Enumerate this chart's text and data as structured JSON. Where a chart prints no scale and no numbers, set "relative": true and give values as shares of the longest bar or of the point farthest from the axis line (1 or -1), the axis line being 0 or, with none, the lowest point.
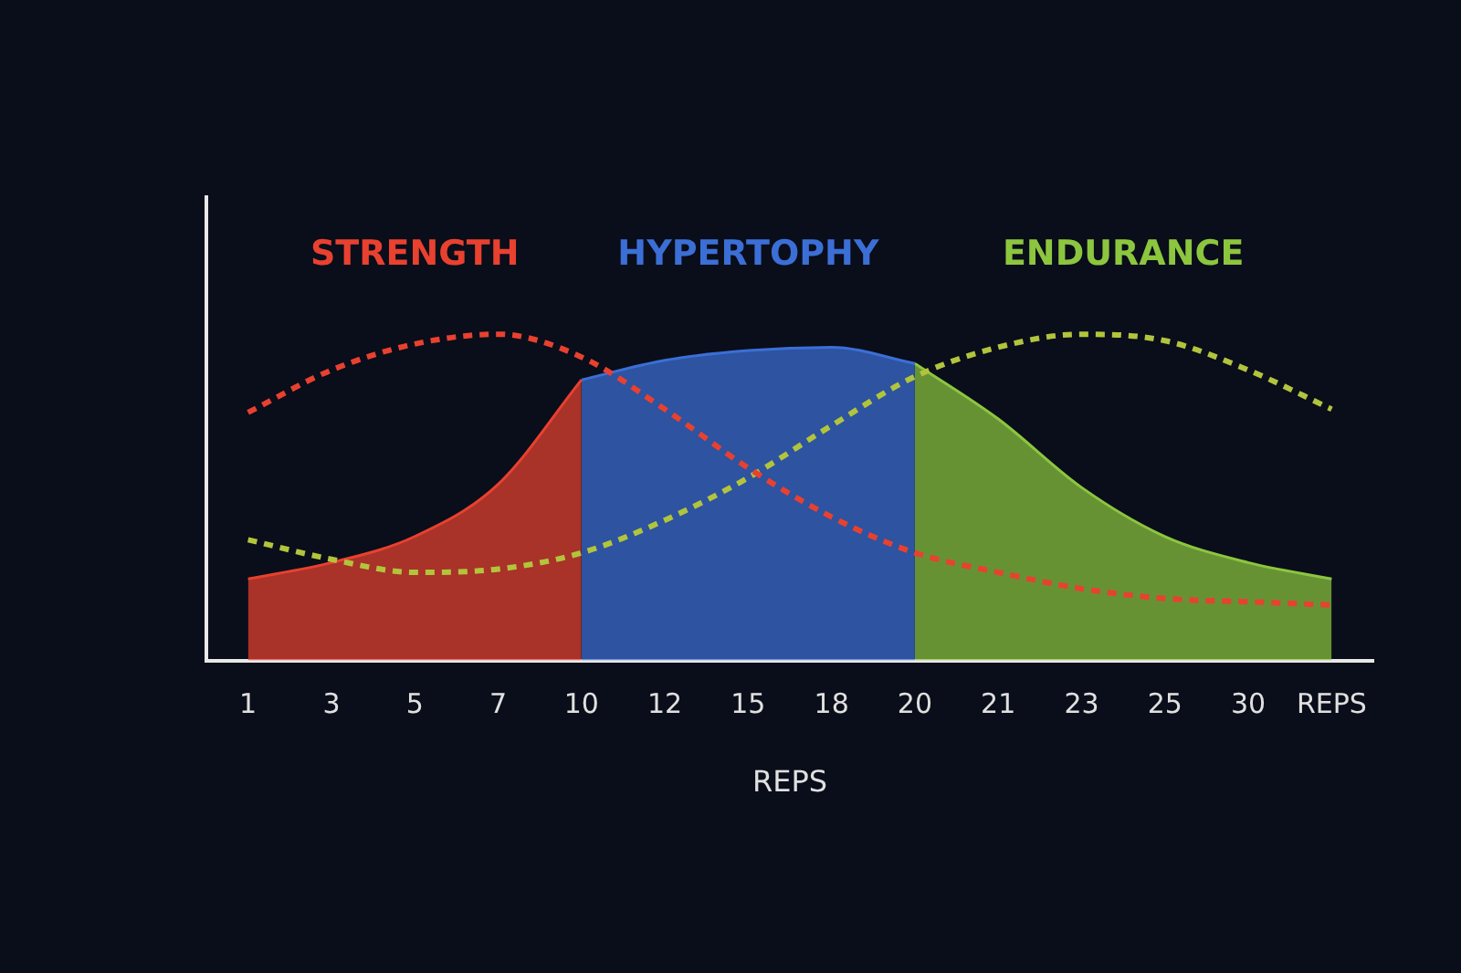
{
  "chart_data": {
    "type": "area",
    "relative": true,
    "xlabel": "REPS",
    "categories": [
      "1",
      "3",
      "5",
      "7",
      "10",
      "12",
      "15",
      "18",
      "20",
      "21",
      "23",
      "25",
      "30",
      "REPS"
    ],
    "grid": false,
    "legend": false,
    "marker": "none",
    "series": [
      {
        "name": "STRENGTH",
        "color": "#e8412f",
        "values": [
          0.25,
          0.3,
          0.38,
          0.54,
          0.86,
          null,
          null,
          null,
          null,
          null,
          null,
          null,
          null,
          null
        ]
      },
      {
        "name": "HYPERTOPHY",
        "color": "#3b6fd6",
        "values": [
          null,
          null,
          null,
          null,
          0.86,
          0.92,
          0.95,
          0.96,
          0.91,
          null,
          null,
          null,
          null,
          null
        ]
      },
      {
        "name": "ENDURANCE",
        "color": "#8cc63f",
        "values": [
          null,
          null,
          null,
          null,
          null,
          null,
          null,
          null,
          0.91,
          0.74,
          0.53,
          0.38,
          0.3,
          0.25
        ]
      },
      {
        "type": "line",
        "line_style": "dashed",
        "color": "#e8412f",
        "values": [
          0.76,
          0.89,
          0.97,
          1,
          0.93,
          0.77,
          0.59,
          0.44,
          0.33,
          0.27,
          0.22,
          0.19,
          0.18,
          0.17
        ]
      },
      {
        "type": "line",
        "line_style": "dashed",
        "color": "#b2c43c",
        "values": [
          0.37,
          0.31,
          0.27,
          0.28,
          0.33,
          0.43,
          0.56,
          0.72,
          0.87,
          0.96,
          1,
          0.98,
          0.89,
          0.77
        ]
      }
    ]
  }
}
